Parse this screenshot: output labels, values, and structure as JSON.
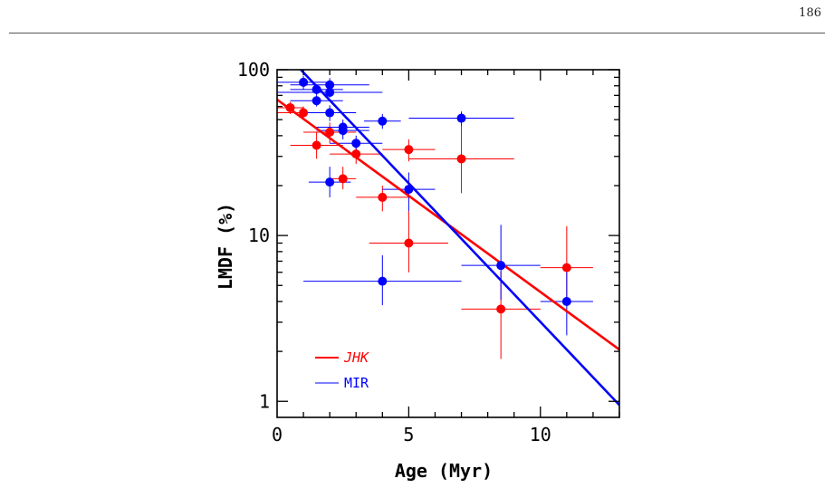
{
  "page": {
    "number": "186"
  },
  "chart_data": {
    "type": "scatter",
    "xlabel": "Age (Myr)",
    "ylabel": "LMDF (%)",
    "xlim": [
      0,
      13
    ],
    "ylim": [
      0.8,
      100
    ],
    "yscale": "log",
    "x_ticks": [
      0,
      5,
      10
    ],
    "y_ticks": [
      1,
      10,
      100
    ],
    "legend_position": "bottom-left",
    "series": [
      {
        "name": "JHK",
        "color": "#ff0000",
        "points": [
          {
            "x": 0.5,
            "y": 59,
            "xerr": [
              0.5,
              0.5
            ],
            "yerr": [
              5,
              5
            ]
          },
          {
            "x": 1,
            "y": 55,
            "xerr": [
              1,
              1
            ],
            "yerr": [
              5,
              5
            ]
          },
          {
            "x": 1.5,
            "y": 35,
            "xerr": [
              1,
              1
            ],
            "yerr": [
              6,
              7
            ]
          },
          {
            "x": 2,
            "y": 42,
            "xerr": [
              1,
              1
            ],
            "yerr": [
              6,
              6
            ]
          },
          {
            "x": 2.5,
            "y": 22,
            "xerr": [
              0.5,
              0.5
            ],
            "yerr": [
              3,
              4
            ]
          },
          {
            "x": 3,
            "y": 31,
            "xerr": [
              1,
              1
            ],
            "yerr": [
              4,
              4
            ]
          },
          {
            "x": 4,
            "y": 17,
            "xerr": [
              1,
              1
            ],
            "yerr": [
              3,
              3
            ]
          },
          {
            "x": 5,
            "y": 33,
            "xerr": [
              1,
              1
            ],
            "yerr": [
              5,
              5
            ]
          },
          {
            "x": 5,
            "y": 9,
            "xerr": [
              1.5,
              1.5
            ],
            "yerr": [
              3,
              5
            ]
          },
          {
            "x": 7,
            "y": 29,
            "xerr": [
              2,
              2
            ],
            "yerr": [
              11,
              18
            ]
          },
          {
            "x": 8.5,
            "y": 3.6,
            "xerr": [
              1.5,
              1.5
            ],
            "yerr": [
              1.8,
              2.5
            ]
          },
          {
            "x": 11,
            "y": 6.4,
            "xerr": [
              1,
              1
            ],
            "yerr": [
              2.5,
              5
            ]
          }
        ],
        "fit_line": {
          "x": [
            0,
            13
          ],
          "y": [
            66,
            2.05
          ]
        }
      },
      {
        "name": "MIR",
        "color": "#0000ff",
        "points": [
          {
            "x": 1,
            "y": 84,
            "xerr": [
              1,
              1
            ],
            "yerr": [
              8,
              8
            ]
          },
          {
            "x": 1.5,
            "y": 76,
            "xerr": [
              1,
              1
            ],
            "yerr": [
              6,
              6
            ]
          },
          {
            "x": 1.5,
            "y": 65,
            "xerr": [
              1,
              1
            ],
            "yerr": [
              5,
              5
            ]
          },
          {
            "x": 2,
            "y": 81,
            "xerr": [
              1.5,
              1.5
            ],
            "yerr": [
              8,
              8
            ]
          },
          {
            "x": 2,
            "y": 73,
            "xerr": [
              2,
              2
            ],
            "yerr": [
              5,
              5
            ]
          },
          {
            "x": 2,
            "y": 55,
            "xerr": [
              1,
              1
            ],
            "yerr": [
              6,
              6
            ]
          },
          {
            "x": 2.5,
            "y": 45,
            "xerr": [
              1,
              1
            ],
            "yerr": [
              5,
              5
            ]
          },
          {
            "x": 2.5,
            "y": 43,
            "xerr": [
              1,
              1
            ],
            "yerr": [
              5,
              5
            ]
          },
          {
            "x": 3,
            "y": 36,
            "xerr": [
              1,
              1
            ],
            "yerr": [
              4,
              4
            ]
          },
          {
            "x": 2,
            "y": 21,
            "xerr": [
              0.8,
              0.8
            ],
            "yerr": [
              4,
              5
            ]
          },
          {
            "x": 4,
            "y": 49,
            "xerr": [
              0.7,
              0.7
            ],
            "yerr": [
              5,
              5
            ]
          },
          {
            "x": 7,
            "y": 51,
            "xerr": [
              2,
              2
            ],
            "yerr": [
              5,
              5
            ]
          },
          {
            "x": 5,
            "y": 19,
            "xerr": [
              1,
              1
            ],
            "yerr": [
              5,
              5
            ]
          },
          {
            "x": 4,
            "y": 5.3,
            "xerr": [
              3,
              3
            ],
            "yerr": [
              1.5,
              2.3
            ]
          },
          {
            "x": 8.5,
            "y": 6.6,
            "xerr": [
              1.5,
              1.5
            ],
            "yerr": [
              2.5,
              5
            ]
          },
          {
            "x": 11,
            "y": 4.0,
            "xerr": [
              1,
              1
            ],
            "yerr": [
              1.5,
              2
            ]
          }
        ],
        "fit_line": {
          "x": [
            0.9,
            13
          ],
          "y": [
            100,
            0.95
          ]
        }
      }
    ]
  }
}
